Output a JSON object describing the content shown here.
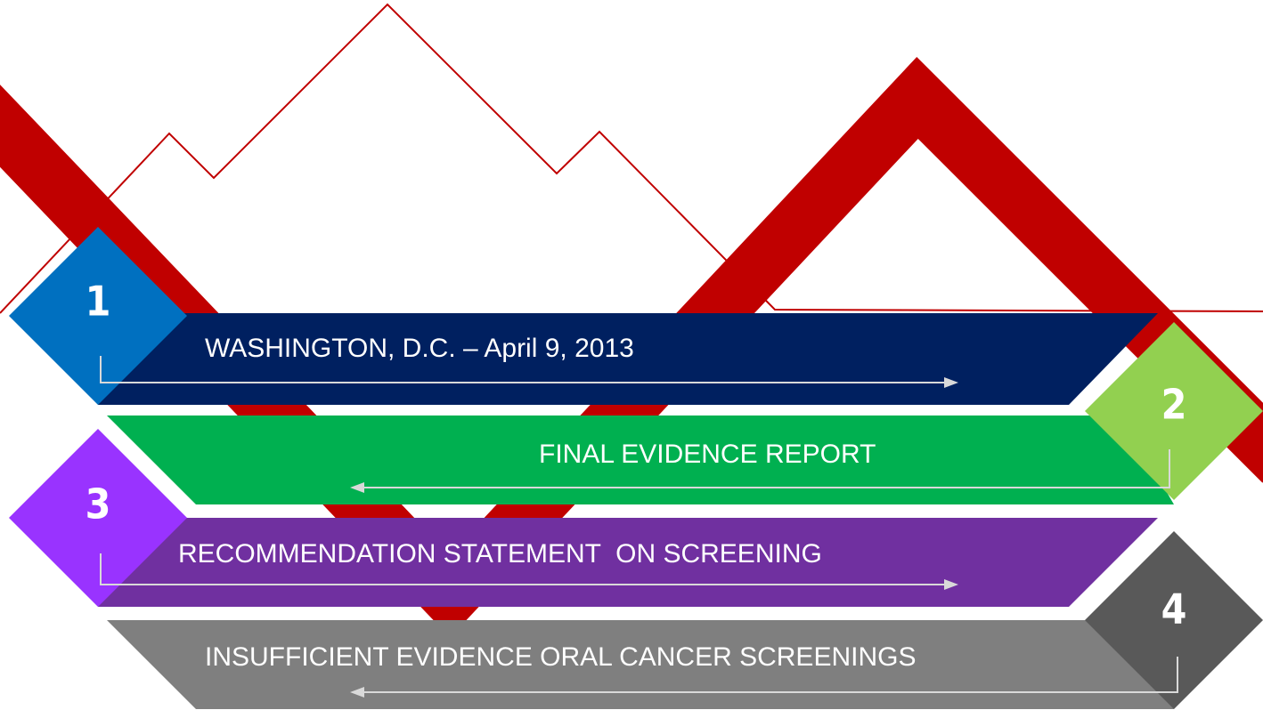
{
  "steps": [
    {
      "number": "1",
      "label": "WASHINGTON, D.C. – April 9, 2013"
    },
    {
      "number": "2",
      "label": "FINAL EVIDENCE REPORT"
    },
    {
      "number": "3",
      "label": "RECOMMENDATION STATEMENT  ON SCREENING"
    },
    {
      "number": "4",
      "label": "INSUFFICIENT EVIDENCE ORAL CANCER SCREENINGS"
    }
  ]
}
